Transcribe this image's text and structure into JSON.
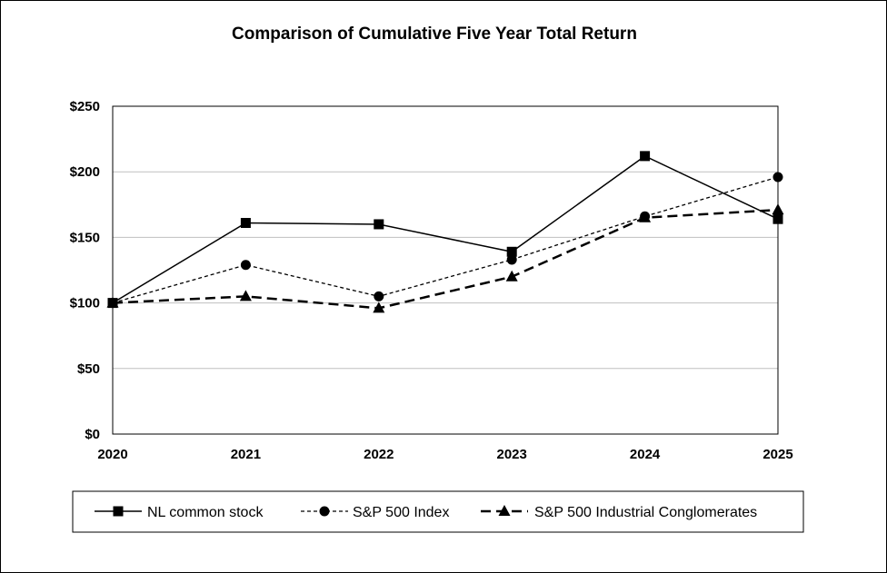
{
  "chart_data": {
    "type": "line",
    "title": "Comparison of Cumulative Five Year Total Return",
    "xlabel": "",
    "ylabel": "",
    "categories": [
      "2020",
      "2021",
      "2022",
      "2023",
      "2024",
      "2025"
    ],
    "y_tick_labels": [
      "$0",
      "$50",
      "$100",
      "$150",
      "$200",
      "$250"
    ],
    "y_ticks": [
      0,
      50,
      100,
      150,
      200,
      250
    ],
    "ylim": [
      0,
      250
    ],
    "grid": "horizontal",
    "legend_position": "bottom",
    "series": [
      {
        "name": "NL common stock",
        "values": [
          100,
          161,
          160,
          139,
          212,
          164
        ],
        "marker": "square",
        "line": "solid"
      },
      {
        "name": "S&P 500 Index",
        "values": [
          100,
          129,
          105,
          133,
          166,
          196
        ],
        "marker": "circle",
        "line": "short-dash"
      },
      {
        "name": "S&P 500 Industrial Conglomerates",
        "values": [
          100,
          105,
          96,
          120,
          165,
          171
        ],
        "marker": "triangle",
        "line": "long-dash"
      }
    ],
    "colors": {
      "lines": "#000000",
      "grid": "#bfbfbf",
      "frame": "#000000"
    }
  }
}
